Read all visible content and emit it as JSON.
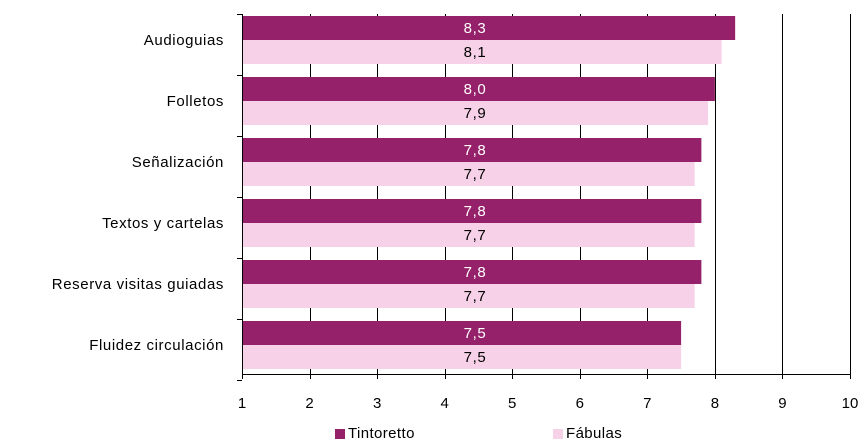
{
  "chart_data": {
    "type": "bar",
    "orientation": "horizontal",
    "categories": [
      "Audioguias",
      "Folletos",
      "Señalización",
      "Textos y cartelas",
      "Reserva visitas guiadas",
      "Fluidez circulación"
    ],
    "series": [
      {
        "name": "Tintoretto",
        "color": "#96216b",
        "values": [
          8.3,
          8.0,
          7.8,
          7.8,
          7.8,
          7.5
        ],
        "labels": [
          "8,3",
          "8,0",
          "7,8",
          "7,8",
          "7,8",
          "7,5"
        ]
      },
      {
        "name": "Fábulas",
        "color": "#f7d1e8",
        "values": [
          8.1,
          7.9,
          7.7,
          7.7,
          7.7,
          7.5
        ],
        "labels": [
          "8,1",
          "7,9",
          "7,7",
          "7,7",
          "7,7",
          "7,5"
        ]
      }
    ],
    "xlim": [
      1,
      10
    ],
    "x_ticks": [
      1,
      2,
      3,
      4,
      5,
      6,
      7,
      8,
      9,
      10
    ],
    "grid": "vertical",
    "legend_position": "bottom",
    "title": "",
    "xlabel": "",
    "ylabel": ""
  }
}
